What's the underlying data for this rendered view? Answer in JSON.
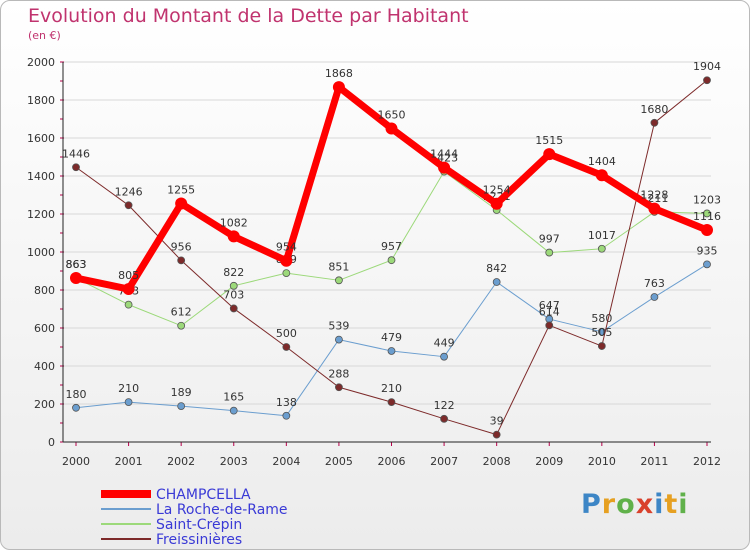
{
  "title": "Evolution du Montant de la Dette par Habitant",
  "subtitle": "(en €)",
  "logo": "Proxiti",
  "chart_data": {
    "type": "line",
    "x": [
      "2000",
      "2001",
      "2002",
      "2003",
      "2004",
      "2005",
      "2006",
      "2007",
      "2008",
      "2009",
      "2010",
      "2011",
      "2012"
    ],
    "ylim": [
      0,
      2000
    ],
    "yticks": [
      "0",
      "200",
      "400",
      "600",
      "800",
      "1000",
      "1200",
      "1400",
      "1600",
      "1800",
      "2000"
    ],
    "legend_position": "bottom-left",
    "series": [
      {
        "name": "CHAMPCELLA",
        "color": "#ff0000",
        "width": 7,
        "values": [
          863,
          805,
          1255,
          1082,
          954,
          1868,
          1650,
          1444,
          1254,
          1515,
          1404,
          1228,
          1116
        ]
      },
      {
        "name": "La Roche-de-Rame",
        "color": "#6b9ecf",
        "width": 1,
        "values": [
          180,
          210,
          189,
          165,
          138,
          539,
          479,
          449,
          842,
          647,
          580,
          763,
          935
        ]
      },
      {
        "name": "Saint-Crépin",
        "color": "#9cd97a",
        "width": 1,
        "values": [
          863,
          723,
          612,
          822,
          889,
          851,
          957,
          1423,
          1221,
          997,
          1017,
          1211,
          1203
        ]
      },
      {
        "name": "Freissinières",
        "color": "#7d2a2a",
        "width": 1,
        "values": [
          1446,
          1246,
          956,
          703,
          500,
          288,
          210,
          122,
          39,
          614,
          505,
          1680,
          1904
        ]
      }
    ]
  }
}
